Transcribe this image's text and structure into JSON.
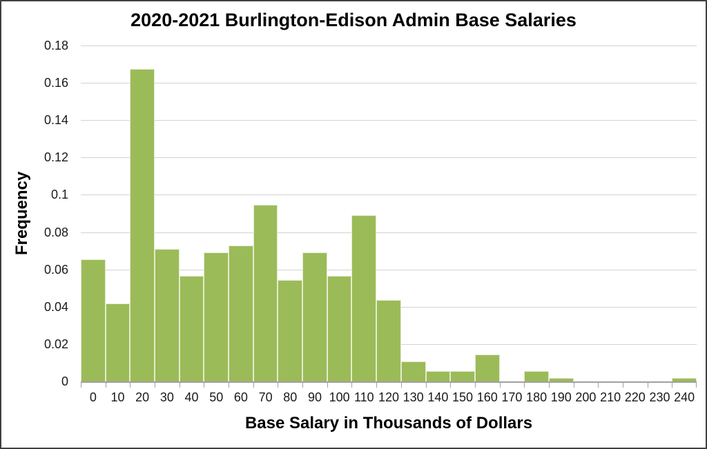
{
  "chart_data": {
    "type": "bar",
    "title": "2020-2021 Burlington-Edison Admin Base Salaries",
    "xlabel": "Base Salary in Thousands of Dollars",
    "ylabel": "Frequency",
    "categories": [
      "0",
      "10",
      "20",
      "30",
      "40",
      "50",
      "60",
      "70",
      "80",
      "90",
      "100",
      "110",
      "120",
      "130",
      "140",
      "150",
      "160",
      "170",
      "180",
      "190",
      "200",
      "210",
      "220",
      "230",
      "240"
    ],
    "values": [
      0.0655,
      0.0418,
      0.1673,
      0.0709,
      0.0564,
      0.0691,
      0.0727,
      0.0945,
      0.0545,
      0.0691,
      0.0564,
      0.0891,
      0.0436,
      0.0109,
      0.0055,
      0.0055,
      0.0145,
      0,
      0.0055,
      0.0018,
      0,
      0,
      0,
      0,
      0.0018
    ],
    "ylim": [
      0,
      0.18
    ],
    "ytick_step": 0.02,
    "ytick_labels": [
      "0.18",
      "0.16",
      "0.14",
      "0.12",
      "0.1",
      "0.08",
      "0.06",
      "0.04",
      "0.02",
      "0"
    ],
    "grid": true,
    "legend": false,
    "colors": {
      "bar_fill": "#9BBB59",
      "bar_border": "#E3ECCC",
      "gridline": "#D2D2D2",
      "axis_line": "#A0A0A0",
      "frame_border": "#404040",
      "text": "#000000"
    }
  }
}
